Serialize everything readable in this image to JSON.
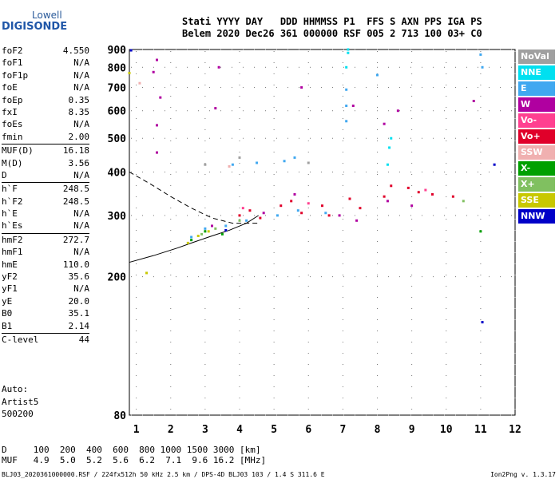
{
  "logo": {
    "line1": "Lowell",
    "line2": "DIGISONDE"
  },
  "header": {
    "line1": "Stati YYYY DAY   DDD HHMMSS P1  FFS S AXN PPS IGA PS",
    "line2": "Belem 2020 Dec26 361 000000 RSF 005 2 713 100 03+ C0"
  },
  "params": [
    {
      "k": "foF2",
      "v": "4.550"
    },
    {
      "k": "foF1",
      "v": "N/A"
    },
    {
      "k": "foF1p",
      "v": "N/A"
    },
    {
      "k": "foE",
      "v": "N/A"
    },
    {
      "k": "foEp",
      "v": "0.35"
    },
    {
      "k": "fxI",
      "v": "8.35"
    },
    {
      "k": "foEs",
      "v": "N/A"
    },
    {
      "k": "fmin",
      "v": "2.00"
    },
    {
      "sep": true
    },
    {
      "k": "MUF(D)",
      "v": "16.18"
    },
    {
      "k": "M(D)",
      "v": "3.56"
    },
    {
      "k": "D",
      "v": "N/A"
    },
    {
      "sep": true
    },
    {
      "k": "h`F",
      "v": "248.5"
    },
    {
      "k": "h`F2",
      "v": "248.5"
    },
    {
      "k": "h`E",
      "v": "N/A"
    },
    {
      "k": "h`Es",
      "v": "N/A"
    },
    {
      "sep": true
    },
    {
      "k": "hmF2",
      "v": "272.7"
    },
    {
      "k": "hmF1",
      "v": "N/A"
    },
    {
      "k": "hmE",
      "v": "110.0"
    },
    {
      "k": "yF2",
      "v": "35.6"
    },
    {
      "k": "yF1",
      "v": "N/A"
    },
    {
      "k": "yE",
      "v": "20.0"
    },
    {
      "k": "B0",
      "v": "35.1"
    },
    {
      "k": "B1",
      "v": "2.14"
    },
    {
      "sep": true
    },
    {
      "k": "C-level",
      "v": "44"
    }
  ],
  "auto": {
    "line1": "Auto:",
    "line2": "Artist5",
    "line3": "500200"
  },
  "bottom": {
    "line1": "D     100  200  400  600  800 1000 1500 3000 [km]",
    "line2": "MUF   4.9  5.0  5.2  5.6  6.2  7.1  9.6 16.2 [MHz]"
  },
  "footer": {
    "left": "BLJ03_2020361000000.RSF / 224fx512h 50 kHz 2.5 km / DPS-4D BLJ03 103 / 1.4 S 311.6 E",
    "right": "Ion2Png v. 1.3.17"
  },
  "legend": [
    {
      "label": "NoVal",
      "color": "#a0a0a0"
    },
    {
      "label": "NNE",
      "color": "#00e0f0"
    },
    {
      "label": "E",
      "color": "#40a8f0"
    },
    {
      "label": "W",
      "color": "#b000a0"
    },
    {
      "label": "Vo-",
      "color": "#ff4090"
    },
    {
      "label": "Vo+",
      "color": "#e0002a"
    },
    {
      "label": "SSW",
      "color": "#f0b0b0"
    },
    {
      "label": "X-",
      "color": "#00a000"
    },
    {
      "label": "X+",
      "color": "#80c060"
    },
    {
      "label": "SSE",
      "color": "#c8c800"
    },
    {
      "label": "NNW",
      "color": "#0000c8"
    }
  ],
  "chart_data": {
    "type": "scatter",
    "xlabel": "",
    "ylabel": "",
    "xlim": [
      0.8,
      12.0
    ],
    "ylim": [
      80,
      900
    ],
    "y_scale": "log",
    "x_ticks": [
      1,
      2,
      3,
      4,
      5,
      6,
      7,
      8,
      9,
      10,
      11,
      12
    ],
    "y_ticks": [
      80,
      200,
      300,
      400,
      500,
      600,
      700,
      800,
      900
    ],
    "grid": true,
    "series": [
      {
        "name": "Vo+",
        "color": "#e0002a",
        "points": [
          [
            4.0,
            300
          ],
          [
            4.3,
            310
          ],
          [
            4.6,
            295
          ],
          [
            5.2,
            320
          ],
          [
            5.5,
            330
          ],
          [
            5.8,
            305
          ],
          [
            6.4,
            320
          ],
          [
            6.6,
            300
          ],
          [
            7.2,
            335
          ],
          [
            7.5,
            315
          ],
          [
            8.2,
            340
          ],
          [
            8.4,
            365
          ],
          [
            8.9,
            360
          ],
          [
            9.2,
            350
          ],
          [
            9.6,
            345
          ],
          [
            10.2,
            340
          ]
        ]
      },
      {
        "name": "W",
        "color": "#b000a0",
        "points": [
          [
            3.2,
            280
          ],
          [
            4.7,
            305
          ],
          [
            5.6,
            345
          ],
          [
            6.9,
            300
          ],
          [
            7.4,
            290
          ],
          [
            8.3,
            330
          ],
          [
            9.0,
            320
          ],
          [
            1.6,
            840
          ],
          [
            1.5,
            775
          ],
          [
            1.7,
            655
          ],
          [
            1.6,
            545
          ],
          [
            1.6,
            455
          ],
          [
            3.4,
            800
          ],
          [
            3.3,
            610
          ],
          [
            5.8,
            700
          ],
          [
            7.3,
            620
          ],
          [
            8.2,
            550
          ],
          [
            8.6,
            600
          ],
          [
            10.8,
            640
          ]
        ]
      },
      {
        "name": "E",
        "color": "#40a8f0",
        "points": [
          [
            2.6,
            260
          ],
          [
            3.0,
            275
          ],
          [
            3.6,
            280
          ],
          [
            4.2,
            290
          ],
          [
            5.1,
            300
          ],
          [
            5.7,
            310
          ],
          [
            6.5,
            305
          ],
          [
            3.8,
            420
          ],
          [
            4.5,
            425
          ],
          [
            5.3,
            430
          ],
          [
            5.6,
            440
          ],
          [
            7.1,
            690
          ],
          [
            7.1,
            620
          ],
          [
            7.1,
            560
          ],
          [
            8.0,
            760
          ],
          [
            11.0,
            870
          ],
          [
            11.05,
            800
          ]
        ]
      },
      {
        "name": "NNE",
        "color": "#00e0f0",
        "points": [
          [
            7.1,
            800
          ],
          [
            7.15,
            880
          ],
          [
            7.15,
            900
          ],
          [
            8.3,
            420
          ],
          [
            8.35,
            470
          ],
          [
            8.4,
            500
          ]
        ]
      },
      {
        "name": "X-",
        "color": "#00a000",
        "points": [
          [
            2.6,
            255
          ],
          [
            3.0,
            270
          ],
          [
            3.5,
            265
          ],
          [
            11.0,
            270
          ]
        ]
      },
      {
        "name": "X+",
        "color": "#80c060",
        "points": [
          [
            2.9,
            265
          ],
          [
            3.3,
            275
          ],
          [
            4.0,
            290
          ],
          [
            10.5,
            330
          ]
        ]
      },
      {
        "name": "SSE",
        "color": "#c8c800",
        "points": [
          [
            2.5,
            250
          ],
          [
            2.8,
            262
          ],
          [
            3.1,
            270
          ],
          [
            0.8,
            770
          ],
          [
            1.3,
            205
          ]
        ]
      },
      {
        "name": "SSW",
        "color": "#f0b0b0",
        "points": [
          [
            1.1,
            720
          ],
          [
            3.7,
            415
          ]
        ]
      },
      {
        "name": "NNW",
        "color": "#0000c8",
        "points": [
          [
            3.6,
            272
          ],
          [
            0.85,
            895
          ],
          [
            11.4,
            420
          ],
          [
            11.05,
            148
          ]
        ]
      },
      {
        "name": "Vo-",
        "color": "#ff4090",
        "points": [
          [
            4.1,
            315
          ],
          [
            6.0,
            325
          ],
          [
            9.4,
            355
          ]
        ]
      },
      {
        "name": "NoVal",
        "color": "#a0a0a0",
        "points": [
          [
            3.0,
            420
          ],
          [
            4.0,
            440
          ],
          [
            6.0,
            425
          ]
        ]
      }
    ],
    "profile_solid": [
      [
        0.8,
        220
      ],
      [
        1.5,
        230
      ],
      [
        2.2,
        242
      ],
      [
        2.7,
        252
      ],
      [
        3.2,
        262
      ],
      [
        3.7,
        272
      ],
      [
        4.2,
        285
      ],
      [
        4.55,
        300
      ]
    ],
    "profile_dashed": [
      [
        0.8,
        400
      ],
      [
        1.4,
        370
      ],
      [
        2.0,
        340
      ],
      [
        2.6,
        315
      ],
      [
        3.2,
        295
      ],
      [
        3.8,
        285
      ],
      [
        4.55,
        285
      ]
    ]
  }
}
